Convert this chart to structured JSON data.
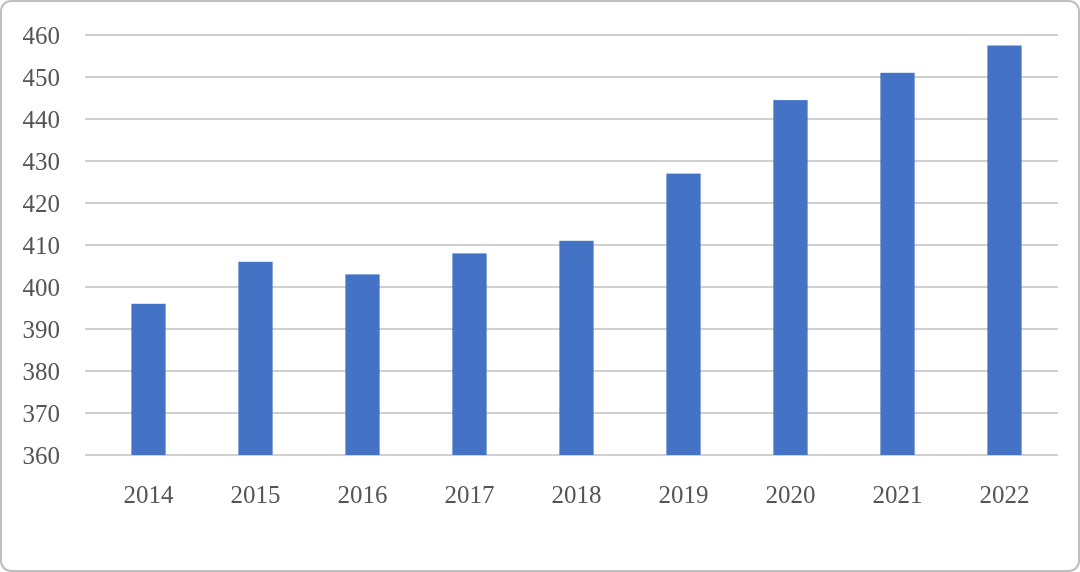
{
  "chart_data": {
    "type": "bar",
    "categories": [
      "2014",
      "2015",
      "2016",
      "2017",
      "2018",
      "2019",
      "2020",
      "2021",
      "2022"
    ],
    "values": [
      396,
      406,
      403,
      408,
      411,
      427,
      444.5,
      451,
      457.5
    ],
    "color": "#4472c4",
    "ylim": [
      360,
      460
    ],
    "yticks": [
      360,
      370,
      380,
      390,
      400,
      410,
      420,
      430,
      440,
      450,
      460
    ],
    "grid": "y"
  }
}
